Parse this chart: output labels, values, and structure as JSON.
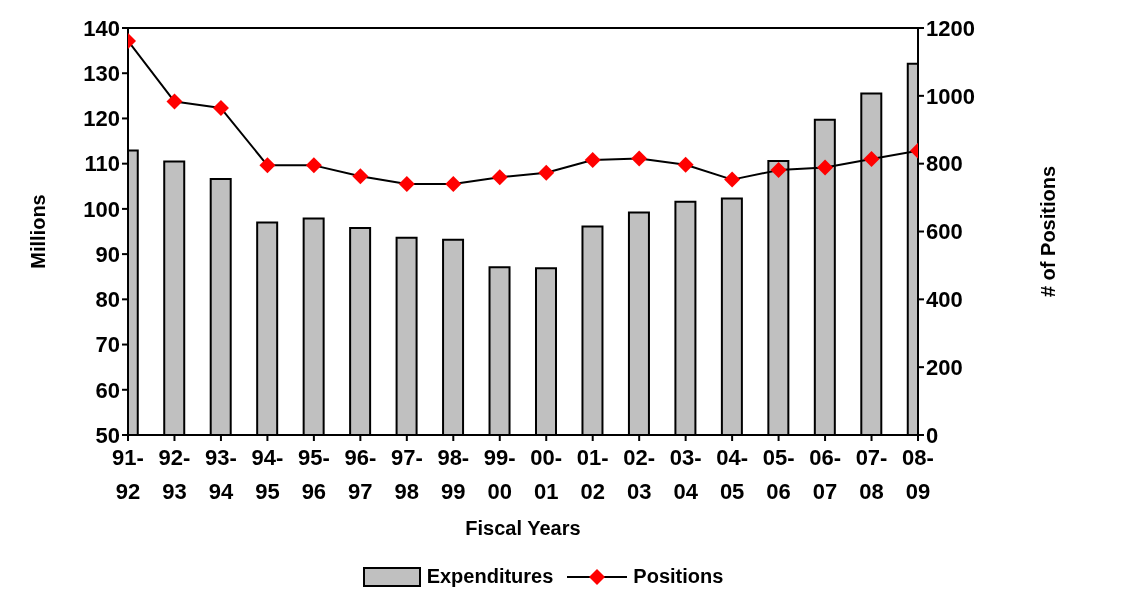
{
  "chart_data": {
    "type": "bar",
    "xlabel": "Fiscal Years",
    "ylabel": "Millions",
    "y2label": "# of Positions",
    "categories": [
      "91-92",
      "92-93",
      "93-94",
      "94-95",
      "95-96",
      "96-97",
      "97-98",
      "98-99",
      "99-00",
      "00-01",
      "01-02",
      "02-03",
      "03-04",
      "04-05",
      "05-06",
      "06-07",
      "07-08",
      "08-09"
    ],
    "series": [
      {
        "name": "Expenditures",
        "color": "#c0c0c0",
        "values": [
          112.9,
          110.5,
          106.6,
          97.0,
          97.9,
          95.8,
          93.6,
          93.2,
          87.1,
          86.9,
          96.1,
          99.2,
          101.6,
          102.3,
          110.6,
          119.7,
          125.5,
          132.1
        ]
      },
      {
        "name": "Positions",
        "type": "line",
        "axis": "y2",
        "color": "#ff0000",
        "marker": "diamond",
        "values": [
          1162,
          983,
          964,
          795,
          795,
          763,
          740,
          740,
          760,
          773,
          811,
          815,
          797,
          753,
          781,
          789,
          814,
          838
        ]
      }
    ],
    "ylim": [
      50,
      140
    ],
    "yticks": [
      50,
      60,
      70,
      80,
      90,
      100,
      110,
      120,
      130,
      140
    ],
    "y2lim": [
      0,
      1200
    ],
    "y2ticks": [
      0,
      200,
      400,
      600,
      800,
      1000,
      1200
    ],
    "legend": "bottom"
  }
}
